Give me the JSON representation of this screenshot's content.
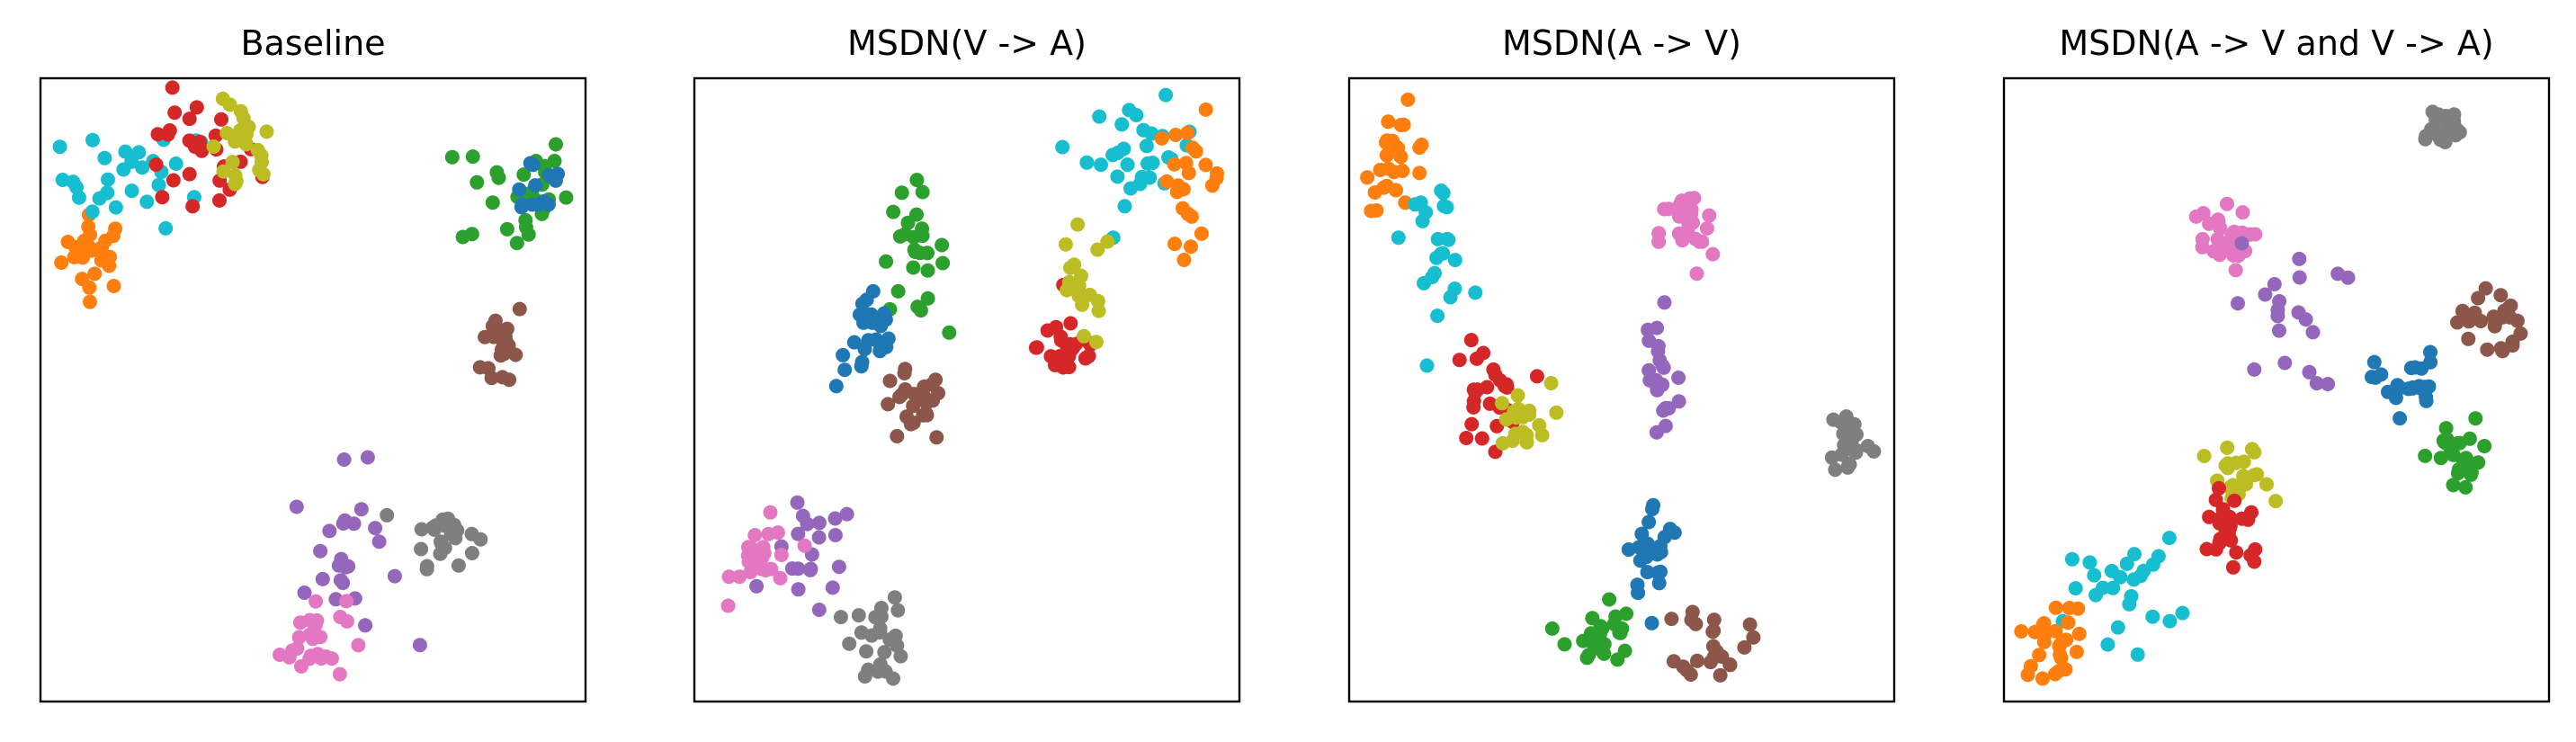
{
  "figure": {
    "panels": [
      {
        "title": "Baseline"
      },
      {
        "title": "MSDN(V -> A)"
      },
      {
        "title": "MSDN(A -> V)"
      },
      {
        "title": "MSDN(A -> V and V -> A)"
      }
    ]
  },
  "colors": {
    "c0": "#1f77b4",
    "c1": "#ff7f0e",
    "c2": "#2ca02c",
    "c3": "#d62728",
    "c4": "#9467bd",
    "c5": "#8c564b",
    "c6": "#e377c2",
    "c7": "#7f7f7f",
    "c8": "#bcbd22",
    "c9": "#17becf"
  },
  "chart_data": [
    {
      "type": "scatter",
      "title": "Baseline",
      "xlim": [
        0,
        100
      ],
      "ylim": [
        0,
        100
      ],
      "axes_ticks": "none",
      "grid": false,
      "clusters": [
        {
          "color": "#ff7f0e",
          "center": [
            10,
            72
          ],
          "spread": [
            3,
            3
          ],
          "n": 26
        },
        {
          "color": "#17becf",
          "center": [
            18,
            84
          ],
          "spread": [
            7,
            4
          ],
          "n": 30
        },
        {
          "color": "#d62728",
          "center": [
            28,
            87
          ],
          "spread": [
            6,
            5
          ],
          "n": 26
        },
        {
          "color": "#bcbd22",
          "center": [
            37,
            88
          ],
          "spread": [
            3,
            4
          ],
          "n": 22
        },
        {
          "color": "#2ca02c",
          "center": [
            87,
            82
          ],
          "spread": [
            5,
            5
          ],
          "n": 30
        },
        {
          "color": "#1f77b4",
          "center": [
            91,
            83
          ],
          "spread": [
            3,
            3
          ],
          "n": 14
        },
        {
          "color": "#8c564b",
          "center": [
            85,
            57
          ],
          "spread": [
            2,
            4
          ],
          "n": 20
        },
        {
          "color": "#7f7f7f",
          "center": [
            74,
            27
          ],
          "spread": [
            3,
            2.5
          ],
          "n": 24
        },
        {
          "color": "#9467bd",
          "center": [
            56,
            23
          ],
          "spread": [
            5,
            7
          ],
          "n": 24
        },
        {
          "color": "#e377c2",
          "center": [
            50,
            10
          ],
          "spread": [
            3,
            3.5
          ],
          "n": 26
        }
      ]
    },
    {
      "type": "scatter",
      "title": "MSDN(V -> A)",
      "xlim": [
        0,
        100
      ],
      "ylim": [
        0,
        100
      ],
      "axes_ticks": "none",
      "grid": false,
      "clusters": [
        {
          "color": "#17becf",
          "center": [
            82,
            88
          ],
          "spread": [
            5,
            4
          ],
          "n": 30
        },
        {
          "color": "#ff7f0e",
          "center": [
            91,
            84
          ],
          "spread": [
            3,
            5
          ],
          "n": 24
        },
        {
          "color": "#2ca02c",
          "center": [
            40,
            72
          ],
          "spread": [
            3,
            5
          ],
          "n": 26
        },
        {
          "color": "#1f77b4",
          "center": [
            32,
            58
          ],
          "spread": [
            3,
            4
          ],
          "n": 24
        },
        {
          "color": "#d62728",
          "center": [
            69,
            57
          ],
          "spread": [
            3,
            3
          ],
          "n": 26
        },
        {
          "color": "#bcbd22",
          "center": [
            71,
            66
          ],
          "spread": [
            3,
            5
          ],
          "n": 18
        },
        {
          "color": "#8c564b",
          "center": [
            40,
            47
          ],
          "spread": [
            3,
            3
          ],
          "n": 26
        },
        {
          "color": "#9467bd",
          "center": [
            22,
            23
          ],
          "spread": [
            4,
            5
          ],
          "n": 20
        },
        {
          "color": "#e377c2",
          "center": [
            13,
            23
          ],
          "spread": [
            3,
            3
          ],
          "n": 24
        },
        {
          "color": "#7f7f7f",
          "center": [
            34,
            10
          ],
          "spread": [
            2.5,
            3.5
          ],
          "n": 26
        }
      ]
    },
    {
      "type": "scatter",
      "title": "MSDN(A -> V)",
      "xlim": [
        0,
        100
      ],
      "ylim": [
        0,
        100
      ],
      "axes_ticks": "none",
      "grid": false,
      "clusters": [
        {
          "color": "#ff7f0e",
          "center": [
            9,
            87
          ],
          "spread": [
            3,
            4
          ],
          "n": 26
        },
        {
          "color": "#17becf",
          "center": [
            16,
            74
          ],
          "spread": [
            3,
            5
          ],
          "n": 24
        },
        {
          "color": "#d62728",
          "center": [
            25,
            49
          ],
          "spread": [
            3,
            4
          ],
          "n": 26
        },
        {
          "color": "#bcbd22",
          "center": [
            31,
            45
          ],
          "spread": [
            3,
            3
          ],
          "n": 20
        },
        {
          "color": "#e377c2",
          "center": [
            62,
            75
          ],
          "spread": [
            2.5,
            3.5
          ],
          "n": 26
        },
        {
          "color": "#9467bd",
          "center": [
            57,
            52
          ],
          "spread": [
            2,
            9
          ],
          "n": 22
        },
        {
          "color": "#7f7f7f",
          "center": [
            92,
            42
          ],
          "spread": [
            2,
            3
          ],
          "n": 24
        },
        {
          "color": "#1f77b4",
          "center": [
            56,
            24
          ],
          "spread": [
            2.5,
            4
          ],
          "n": 26
        },
        {
          "color": "#2ca02c",
          "center": [
            46,
            11
          ],
          "spread": [
            3,
            3
          ],
          "n": 24
        },
        {
          "color": "#8c564b",
          "center": [
            67,
            10
          ],
          "spread": [
            3,
            3
          ],
          "n": 24
        }
      ]
    },
    {
      "type": "scatter",
      "title": "MSDN(A -> V and V -> A)",
      "xlim": [
        0,
        100
      ],
      "ylim": [
        0,
        100
      ],
      "axes_ticks": "none",
      "grid": false,
      "clusters": [
        {
          "color": "#7f7f7f",
          "center": [
            80,
            92
          ],
          "spread": [
            2.5,
            2
          ],
          "n": 24
        },
        {
          "color": "#e377c2",
          "center": [
            39,
            74
          ],
          "spread": [
            3,
            2.5
          ],
          "n": 26
        },
        {
          "color": "#9467bd",
          "center": [
            52,
            62
          ],
          "spread": [
            5,
            6
          ],
          "n": 20
        },
        {
          "color": "#8c564b",
          "center": [
            89,
            61
          ],
          "spread": [
            3,
            3
          ],
          "n": 24
        },
        {
          "color": "#1f77b4",
          "center": [
            74,
            51
          ],
          "spread": [
            3,
            2.5
          ],
          "n": 24
        },
        {
          "color": "#2ca02c",
          "center": [
            84,
            39
          ],
          "spread": [
            3,
            3
          ],
          "n": 24
        },
        {
          "color": "#bcbd22",
          "center": [
            43,
            35
          ],
          "spread": [
            3,
            3
          ],
          "n": 22
        },
        {
          "color": "#d62728",
          "center": [
            42,
            28
          ],
          "spread": [
            3,
            4
          ],
          "n": 26
        },
        {
          "color": "#17becf",
          "center": [
            22,
            18
          ],
          "spread": [
            5,
            4
          ],
          "n": 26
        },
        {
          "color": "#ff7f0e",
          "center": [
            9,
            10
          ],
          "spread": [
            3,
            3
          ],
          "n": 26
        }
      ]
    }
  ]
}
